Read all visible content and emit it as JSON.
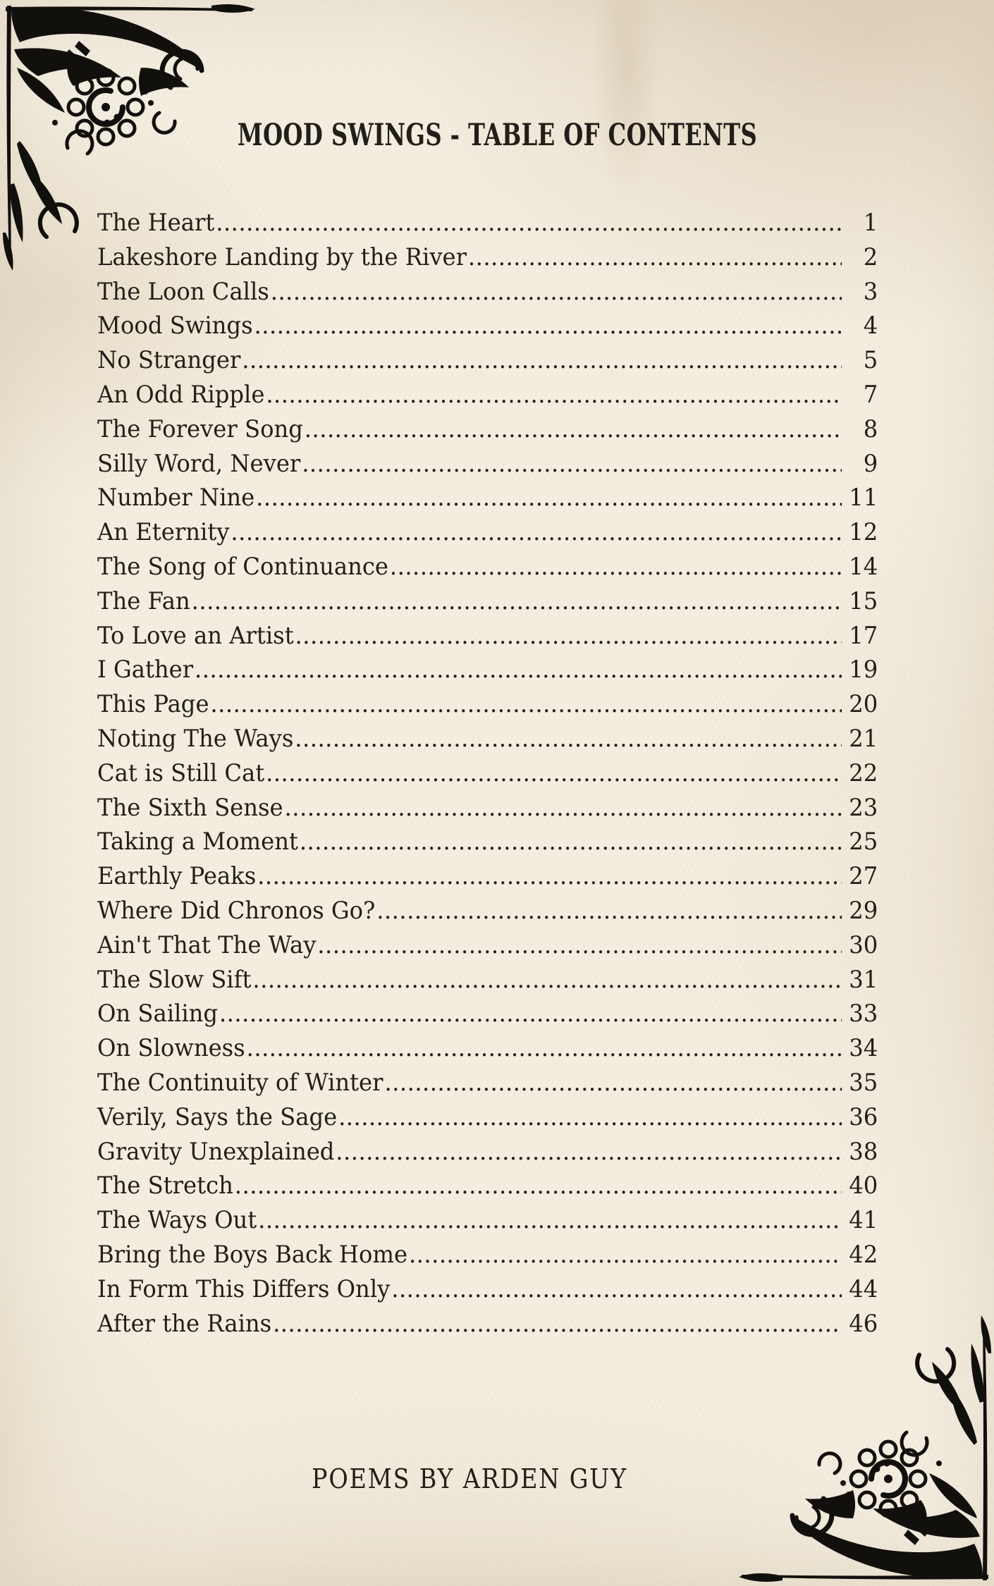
{
  "page": {
    "title": "MOOD SWINGS - TABLE OF CONTENTS",
    "footer": "POEMS BY ARDEN GUY"
  },
  "toc": {
    "entries": [
      {
        "title": "The Heart",
        "page": "1"
      },
      {
        "title": "Lakeshore Landing by the River",
        "page": "2"
      },
      {
        "title": "The Loon Calls",
        "page": "3"
      },
      {
        "title": "Mood Swings",
        "page": "4"
      },
      {
        "title": "No Stranger",
        "page": "5"
      },
      {
        "title": "An Odd Ripple",
        "page": "7"
      },
      {
        "title": "The Forever Song",
        "page": "8"
      },
      {
        "title": "Silly Word, Never",
        "page": "9"
      },
      {
        "title": "Number Nine",
        "page": "11"
      },
      {
        "title": "An Eternity",
        "page": "12"
      },
      {
        "title": "The Song of Continuance",
        "page": "14"
      },
      {
        "title": "The Fan",
        "page": "15"
      },
      {
        "title": "To Love an Artist",
        "page": "17"
      },
      {
        "title": "I Gather",
        "page": "19"
      },
      {
        "title": "This Page",
        "page": "20"
      },
      {
        "title": "Noting The Ways",
        "page": "21"
      },
      {
        "title": "Cat is Still Cat",
        "page": "22"
      },
      {
        "title": "The Sixth Sense",
        "page": "23"
      },
      {
        "title": "Taking a Moment",
        "page": "25"
      },
      {
        "title": "Earthly Peaks",
        "page": "27"
      },
      {
        "title": "Where Did Chronos Go?",
        "page": "29"
      },
      {
        "title": "Ain't That The Way",
        "page": "30"
      },
      {
        "title": "The Slow Sift",
        "page": "31"
      },
      {
        "title": "On Sailing",
        "page": "33"
      },
      {
        "title": "On Slowness",
        "page": "34"
      },
      {
        "title": "The Continuity of Winter",
        "page": "35"
      },
      {
        "title": "Verily, Says the Sage",
        "page": "36"
      },
      {
        "title": "Gravity Unexplained",
        "page": "38"
      },
      {
        "title": "The Stretch",
        "page": "40"
      },
      {
        "title": "The Ways Out",
        "page": "41"
      },
      {
        "title": "Bring the Boys Back Home",
        "page": "42"
      },
      {
        "title": "In Form This Differs Only",
        "page": "44"
      },
      {
        "title": "After the Rains",
        "page": "46"
      }
    ]
  },
  "decorations": {
    "top_left_icon": "corner-flourish-icon",
    "bottom_right_icon": "corner-flourish-icon"
  },
  "colors": {
    "paper": "#f4eee1",
    "ink": "#221e19",
    "ornament": "#12100d"
  }
}
